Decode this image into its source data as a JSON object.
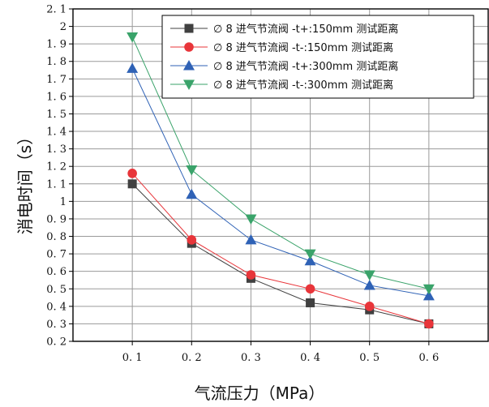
{
  "chart_data": {
    "type": "line",
    "xlabel": "气流压力（MPa）",
    "ylabel": "消电时间（s）",
    "xlim": [
      0.0,
      0.7
    ],
    "ylim": [
      0.2,
      2.1
    ],
    "x_ticks": [
      "0. 1",
      "0. 2",
      "0. 3",
      "0. 4",
      "0. 5",
      "0. 6"
    ],
    "x": [
      0.1,
      0.2,
      0.3,
      0.4,
      0.5,
      0.6
    ],
    "y_ticks": [
      "0. 2",
      "0. 3",
      "0. 4",
      "0. 5",
      "0. 6",
      "0. 7",
      "0. 8",
      "0. 9",
      "1",
      "1. 1",
      "1. 2",
      "1. 3",
      "1. 4",
      "1. 5",
      "1. 6",
      "1. 7",
      "1. 8",
      "1. 9",
      "2",
      "2. 1"
    ],
    "grid": true,
    "legend_position": "top-right",
    "series": [
      {
        "name": "∅ 8 进气节流阀 -t+:150mm 测试距离",
        "color": "#404040",
        "marker": "square",
        "values": [
          1.1,
          0.76,
          0.56,
          0.42,
          0.38,
          0.3
        ]
      },
      {
        "name": "∅ 8 进气节流阀 -t-:150mm 测试距离",
        "color": "#e8353a",
        "marker": "circle",
        "values": [
          1.16,
          0.78,
          0.58,
          0.5,
          0.4,
          0.3
        ]
      },
      {
        "name": "∅ 8 进气节流阀 -t+:300mm 测试距离",
        "color": "#2f62b6",
        "marker": "triangle-up",
        "values": [
          1.76,
          1.04,
          0.78,
          0.66,
          0.52,
          0.46
        ]
      },
      {
        "name": "∅ 8 进气节流阀 -t-:300mm 测试距离",
        "color": "#3aa36a",
        "marker": "triangle-down",
        "values": [
          1.94,
          1.18,
          0.9,
          0.7,
          0.58,
          0.5
        ]
      }
    ]
  }
}
